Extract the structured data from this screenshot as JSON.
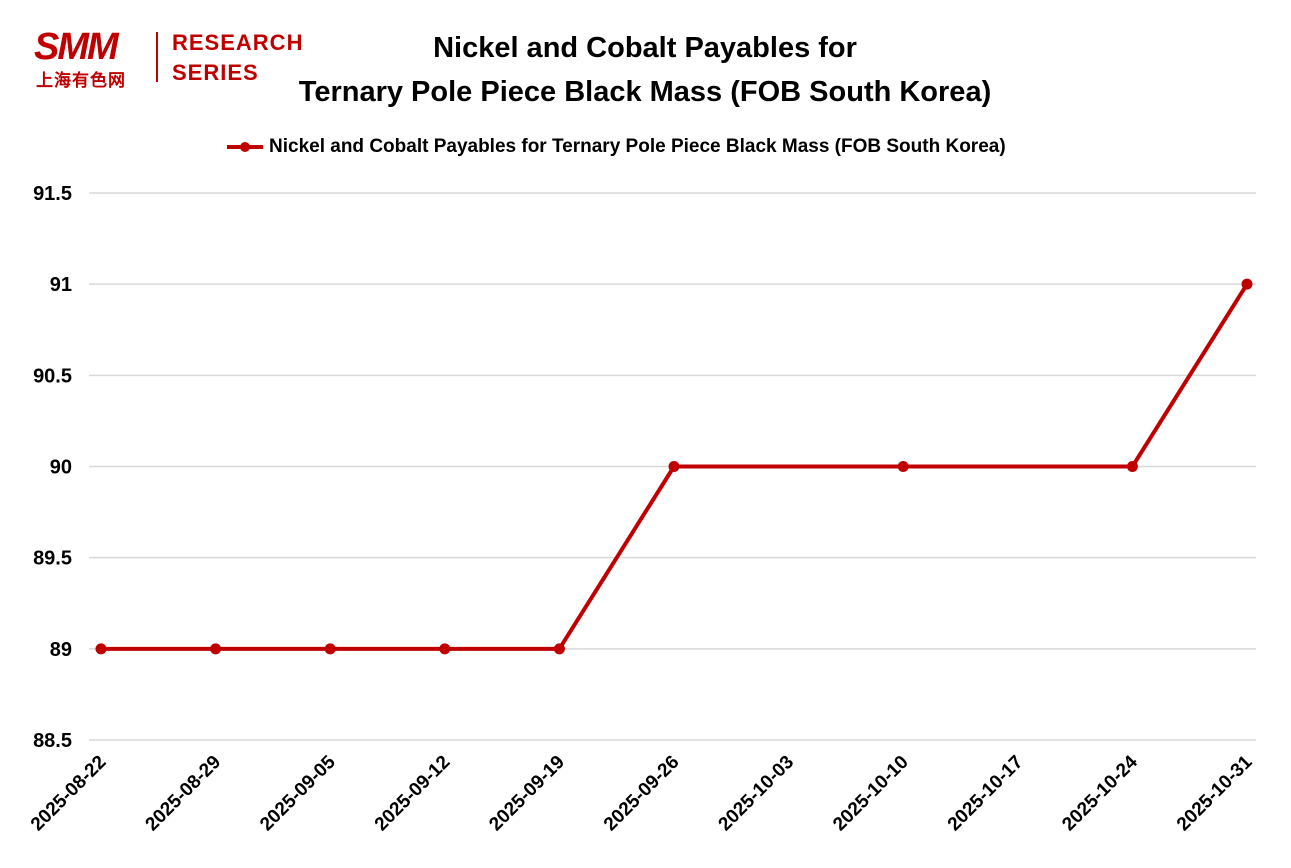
{
  "logo": {
    "brand": "SMM",
    "brand_cn": "上海有色网",
    "research_line1": "RESEARCH",
    "research_line2": "SERIES"
  },
  "title_line1": "Nickel and Cobalt Payables for",
  "title_line2": "Ternary Pole Piece Black Mass (FOB South Korea)",
  "colors": {
    "series": "#c00000",
    "grid": "#d9d9d9",
    "text": "#000000"
  },
  "chart_data": {
    "type": "line",
    "title": "Nickel and Cobalt Payables for Ternary Pole Piece Black Mass (FOB South Korea)",
    "xlabel": "",
    "ylabel": "",
    "x_tick_labels": [
      "2025-08-22",
      "2025-08-29",
      "2025-09-05",
      "2025-09-12",
      "2025-09-19",
      "2025-09-26",
      "2025-10-03",
      "2025-10-10",
      "2025-10-17",
      "2025-10-24",
      "2025-10-31"
    ],
    "y_tick_labels": [
      "88.5",
      "89",
      "89.5",
      "90",
      "90.5",
      "91",
      "91.5"
    ],
    "ylim": [
      88.5,
      91.5
    ],
    "grid": true,
    "legend_position": "top",
    "series": [
      {
        "name": "Nickel and Cobalt Payables for Ternary Pole Piece Black Mass (FOB South Korea)",
        "color": "#c00000",
        "points": [
          {
            "x": "2025-08-22",
            "y": 89
          },
          {
            "x": "2025-08-29",
            "y": 89
          },
          {
            "x": "2025-09-05",
            "y": 89
          },
          {
            "x": "2025-09-12",
            "y": 89
          },
          {
            "x": "2025-09-19",
            "y": 89
          },
          {
            "x": "2025-09-26",
            "y": 90
          },
          {
            "x": "2025-10-10",
            "y": 90
          },
          {
            "x": "2025-10-24",
            "y": 90
          },
          {
            "x": "2025-10-31",
            "y": 91
          }
        ]
      }
    ]
  }
}
